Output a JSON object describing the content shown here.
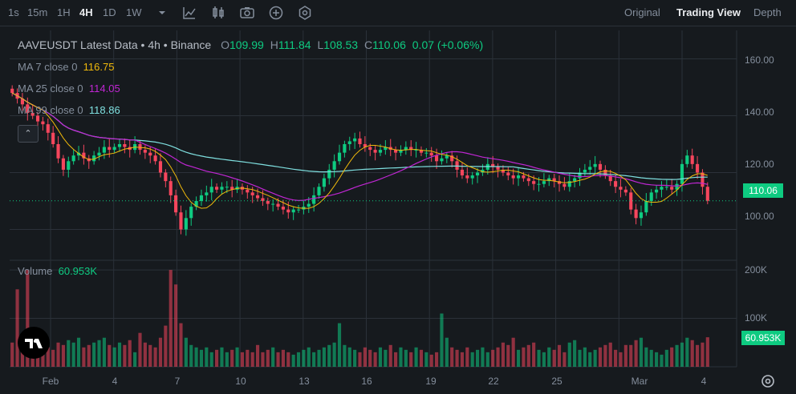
{
  "toolbar": {
    "timeframes": [
      "1s",
      "15m",
      "1H",
      "4H",
      "1D",
      "1W"
    ],
    "active_timeframe": "4H",
    "views": [
      "Original",
      "Trading View",
      "Depth"
    ],
    "active_view": "Trading View"
  },
  "legend": {
    "symbol_title": "AAVEUSDT Latest Data • 4h • Binance",
    "open_label": "O",
    "open": "109.99",
    "high_label": "H",
    "high": "111.84",
    "low_label": "L",
    "low": "108.53",
    "close_label": "C",
    "close": "110.06",
    "change": "0.07 (+0.06%)"
  },
  "ma": [
    {
      "label": "MA 7 close 0",
      "value": "116.75",
      "color": "#f0b90b"
    },
    {
      "label": "MA 25 close 0",
      "value": "114.05",
      "color": "#c026d3"
    },
    {
      "label": "MA 99 close 0",
      "value": "118.86",
      "color": "#7fe0e0"
    }
  ],
  "volume": {
    "label": "Volume",
    "value": "60.953K"
  },
  "price_axis": {
    "ticks": [
      "160.00",
      "140.00",
      "120.00",
      "100.00"
    ],
    "current": "110.06"
  },
  "volume_axis": {
    "ticks": [
      "200K",
      "100K"
    ],
    "current": "60.953K"
  },
  "x_axis": {
    "ticks": [
      "Feb",
      "4",
      "7",
      "10",
      "13",
      "16",
      "19",
      "22",
      "25",
      "Mar",
      "4"
    ]
  },
  "colors": {
    "up": "#0ecb81",
    "down": "#f6465d",
    "background": "#161a1e",
    "grid": "#2b3139"
  },
  "icons": [
    "dropdown-icon",
    "indicators-icon",
    "candle-type-icon",
    "screenshot-icon",
    "add-icon",
    "settings-icon",
    "tradingview-logo",
    "gear-icon"
  ],
  "chart_data": {
    "type": "candlestick",
    "y_range": [
      90,
      170
    ],
    "volume_range": [
      0,
      220000
    ],
    "x_start": "Feb",
    "x_end": "Mar 4",
    "candles_close": [
      148,
      146,
      144,
      141,
      140,
      138,
      137,
      134,
      130,
      125,
      121,
      124,
      126,
      127,
      125,
      124,
      126,
      127,
      129,
      128,
      129,
      130,
      129,
      128,
      130,
      128,
      127,
      126,
      124,
      120,
      117,
      112,
      106,
      100,
      104,
      108,
      110,
      112,
      113,
      115,
      114,
      115,
      115,
      114,
      115,
      114,
      113,
      112,
      111,
      110,
      109,
      109,
      108,
      107,
      106,
      107,
      107,
      108,
      109,
      112,
      115,
      118,
      121,
      124,
      127,
      130,
      131,
      132,
      130,
      129,
      128,
      127,
      128,
      129,
      128,
      127,
      128,
      129,
      128,
      128,
      127,
      127,
      126,
      124,
      125,
      126,
      124,
      121,
      119,
      118,
      119,
      120,
      121,
      123,
      122,
      121,
      120,
      119,
      118,
      119,
      118,
      117,
      116,
      116,
      117,
      118,
      117,
      116,
      115,
      117,
      118,
      120,
      121,
      122,
      123,
      121,
      119,
      117,
      115,
      114,
      113,
      107,
      104,
      106,
      110,
      113,
      114,
      115,
      115,
      114,
      116,
      123,
      126,
      123,
      120,
      115,
      110.06
    ],
    "volume_k": [
      50,
      160,
      60,
      200,
      45,
      55,
      30,
      40,
      35,
      50,
      45,
      55,
      50,
      60,
      40,
      45,
      50,
      55,
      60,
      45,
      40,
      50,
      45,
      55,
      30,
      70,
      50,
      45,
      40,
      60,
      85,
      200,
      170,
      90,
      60,
      45,
      40,
      35,
      40,
      30,
      35,
      40,
      30,
      35,
      40,
      30,
      35,
      30,
      45,
      30,
      35,
      40,
      30,
      35,
      30,
      25,
      30,
      35,
      40,
      30,
      35,
      40,
      45,
      50,
      90,
      45,
      40,
      35,
      30,
      40,
      35,
      30,
      40,
      35,
      45,
      30,
      40,
      35,
      30,
      40,
      35,
      30,
      25,
      30,
      110,
      60,
      40,
      35,
      30,
      40,
      30,
      35,
      40,
      30,
      35,
      40,
      50,
      45,
      60,
      35,
      40,
      45,
      50,
      35,
      30,
      40,
      35,
      45,
      30,
      50,
      55,
      35,
      40,
      30,
      35,
      40,
      45,
      50,
      35,
      30,
      45,
      45,
      55,
      60,
      40,
      35,
      30,
      25,
      35,
      40,
      45,
      50,
      60,
      55,
      45,
      50,
      60.953
    ]
  }
}
